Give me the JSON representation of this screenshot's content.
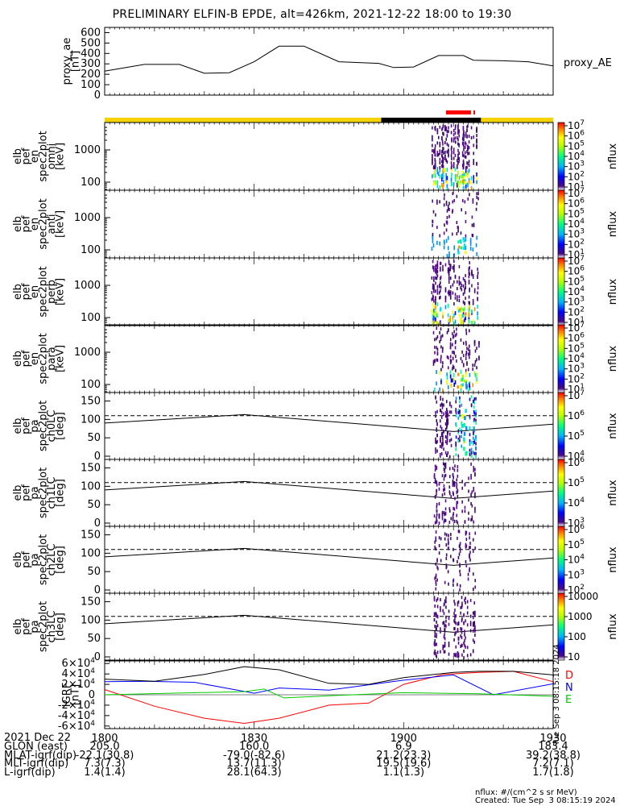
{
  "title": "PRELIMINARY ELFIN-B EPDE, alt=426km, 2021-12-22 18:00 to 19:30",
  "ae_panel": {
    "ylabel_lines": [
      "proxy_ae",
      "[nT]"
    ],
    "legend": "proxy_AE",
    "ticks": [
      "600",
      "500",
      "400",
      "300",
      "200",
      "100",
      "0"
    ]
  },
  "spec_panels": [
    {
      "name": "omni",
      "ylabel_lines": [
        "elb",
        "pef",
        "en",
        "spec2plot",
        "omni",
        "[keV]"
      ],
      "ticks": [
        "1000",
        "100"
      ],
      "cbar_ticks": [
        "10^7",
        "10^6",
        "10^5",
        "10^4",
        "10^3",
        "10^2",
        "10^1"
      ]
    },
    {
      "name": "anti",
      "ylabel_lines": [
        "elb",
        "pef",
        "en",
        "spec2plot",
        "anti",
        "[keV]"
      ],
      "ticks": [
        "1000",
        "100"
      ],
      "cbar_ticks": [
        "10^7",
        "10^6",
        "10^5",
        "10^4",
        "10^3",
        "10^2",
        "10^1"
      ]
    },
    {
      "name": "perp",
      "ylabel_lines": [
        "elb",
        "pef",
        "en",
        "spec2plot",
        "perp",
        "[keV]"
      ],
      "ticks": [
        "1000",
        "100"
      ],
      "cbar_ticks": [
        "10^7",
        "10^6",
        "10^5",
        "10^4",
        "10^3",
        "10^2",
        "10^1"
      ]
    },
    {
      "name": "para",
      "ylabel_lines": [
        "elb",
        "pef",
        "en",
        "spec2plot",
        "para",
        "[keV]"
      ],
      "ticks": [
        "1000",
        "100"
      ],
      "cbar_ticks": [
        "10^7",
        "10^6",
        "10^5",
        "10^4",
        "10^3",
        "10^2",
        "10^1"
      ]
    }
  ],
  "pa_panels": [
    {
      "name": "ch0LC",
      "ylabel_lines": [
        "elb",
        "pef",
        "pa",
        "spec2plot",
        "ch0LC",
        "[deg]"
      ],
      "ticks": [
        "150",
        "100",
        "50",
        "0"
      ],
      "cbar_ticks": [
        "10^7",
        "10^6",
        "10^5",
        "10^4"
      ]
    },
    {
      "name": "ch1LC",
      "ylabel_lines": [
        "elb",
        "pef",
        "pa",
        "spec2plot",
        "ch1LC",
        "[deg]"
      ],
      "ticks": [
        "150",
        "100",
        "50",
        "0"
      ],
      "cbar_ticks": [
        "10^6",
        "10^5",
        "10^4",
        "10^3"
      ]
    },
    {
      "name": "ch2LC",
      "ylabel_lines": [
        "elb",
        "pef",
        "pa",
        "spec2plot",
        "ch2LC",
        "[deg]"
      ],
      "ticks": [
        "150",
        "100",
        "50",
        "0"
      ],
      "cbar_ticks": [
        "10^6",
        "10^5",
        "10^4",
        "10^3",
        "10^2"
      ]
    },
    {
      "name": "ch3LC",
      "ylabel_lines": [
        "elb",
        "pef",
        "pa",
        "spec2plot",
        "ch3LC",
        "[deg]"
      ],
      "ticks": [
        "150",
        "100",
        "50",
        "0"
      ],
      "cbar_ticks": [
        "10000",
        "1000",
        "100",
        "10"
      ]
    }
  ],
  "cbar_label": "nflux",
  "igrf_panel": {
    "ylabel_lines": [
      "IGRF",
      "[nT]"
    ],
    "ticks": [
      "6×10^4",
      "4×10^4",
      "2×10^4",
      "0",
      "-2×10^4",
      "-4×10^4",
      "-6×10^4"
    ],
    "legend": [
      {
        "label": "D",
        "color": "#ff0000"
      },
      {
        "label": "N",
        "color": "#0000ff"
      },
      {
        "label": "E",
        "color": "#00cc00"
      }
    ],
    "stamp": "Tue Sep  3 08:15:18 2024"
  },
  "x_ticks": [
    "1800",
    "1830",
    "1900",
    "1930"
  ],
  "footer": {
    "date": "2021 Dec 22",
    "rows": [
      {
        "label": "GLON (east)",
        "values": [
          "205.0",
          "160.0",
          "6.9",
          "183.4"
        ]
      },
      {
        "label": "MLAT-igrf(dip)",
        "values": [
          "-22.1(30.8)",
          "-79.0(-82.6)",
          "21.2(23.3)",
          "39.2(38.8)"
        ]
      },
      {
        "label": "MLT-igrf(dip)",
        "values": [
          "7.3(7.3)",
          "13.7(11.3)",
          "19.5(19.6)",
          "7.2(7.1)"
        ]
      },
      {
        "label": "L-igrf(dip)",
        "values": [
          "1.4(1.4)",
          "28.1(64.3)",
          "1.1(1.3)",
          "1.7(1.8)"
        ]
      }
    ]
  },
  "credit_lines": [
    "nflux: #/(cm^2 s sr MeV)",
    "Created: Tue Sep  3 08:15:19 2024"
  ],
  "chart_data": {
    "type": "line",
    "title": "PRELIMINARY ELFIN-B EPDE, alt=426km, 2021-12-22 18:00 to 19:30",
    "x_range": [
      "18:00",
      "19:30"
    ],
    "x_tick_labels": [
      "1800",
      "1830",
      "1900",
      "1930"
    ],
    "ae_series": {
      "name": "proxy_AE",
      "ylim": [
        0,
        650
      ],
      "points": [
        [
          "18:00",
          230
        ],
        [
          "18:08",
          295
        ],
        [
          "18:15",
          295
        ],
        [
          "18:20",
          210
        ],
        [
          "18:25",
          215
        ],
        [
          "18:30",
          320
        ],
        [
          "18:35",
          470
        ],
        [
          "18:40",
          470
        ],
        [
          "18:47",
          320
        ],
        [
          "18:55",
          305
        ],
        [
          "18:58",
          265
        ],
        [
          "19:02",
          270
        ],
        [
          "19:07",
          380
        ],
        [
          "19:12",
          380
        ],
        [
          "19:14",
          335
        ],
        [
          "19:20",
          330
        ],
        [
          "19:25",
          320
        ],
        [
          "19:30",
          280
        ]
      ]
    },
    "igrf_series": [
      {
        "name": "D",
        "color": "#ff0000",
        "points": [
          [
            "18:00",
            1
          ],
          [
            "18:10",
            -2.2
          ],
          [
            "18:20",
            -4.5
          ],
          [
            "18:28",
            -5.5
          ],
          [
            "18:35",
            -4.5
          ],
          [
            "18:45",
            -2
          ],
          [
            "18:53",
            -1.6
          ],
          [
            "19:00",
            2
          ],
          [
            "19:08",
            3.9
          ],
          [
            "19:15",
            4.3
          ],
          [
            "19:22",
            4.5
          ],
          [
            "19:30",
            2.5
          ]
        ]
      },
      {
        "name": "N",
        "color": "#0000ff",
        "points": [
          [
            "18:00",
            2.5
          ],
          [
            "18:08",
            2.6
          ],
          [
            "18:18",
            2.4
          ],
          [
            "18:30",
            0.3
          ],
          [
            "18:35",
            1.3
          ],
          [
            "18:45",
            0.9
          ],
          [
            "19:00",
            2.8
          ],
          [
            "19:10",
            3.8
          ],
          [
            "19:18",
            0
          ],
          [
            "19:30",
            2.1
          ]
        ]
      },
      {
        "name": "E",
        "color": "#00cc00",
        "points": [
          [
            "18:00",
            0
          ],
          [
            "18:28",
            0.6
          ],
          [
            "18:32",
            1.1
          ],
          [
            "18:36",
            -0.6
          ],
          [
            "18:45",
            -0.2
          ],
          [
            "19:00",
            0.4
          ],
          [
            "19:15",
            0.2
          ],
          [
            "19:30",
            -0.3
          ]
        ]
      },
      {
        "name": "total",
        "color": "#000000",
        "points": [
          [
            "18:00",
            3
          ],
          [
            "18:10",
            2.6
          ],
          [
            "18:20",
            3.9
          ],
          [
            "18:28",
            5.4
          ],
          [
            "18:35",
            4.8
          ],
          [
            "18:45",
            2.2
          ],
          [
            "18:53",
            2
          ],
          [
            "19:00",
            3.3
          ],
          [
            "19:10",
            4.3
          ],
          [
            "19:15",
            4.5
          ],
          [
            "19:22",
            4.5
          ],
          [
            "19:30",
            3.8
          ]
        ]
      }
    ],
    "igrf_ylim": [
      -6.5,
      6.5
    ],
    "igrf_unit_scale": "×10^4 nT",
    "loss_cone_lines": {
      "solid": [
        [
          "18:00",
          90
        ],
        [
          "18:28",
          113
        ],
        [
          "19:10",
          67
        ],
        [
          "19:30",
          87
        ]
      ],
      "dashed": [
        [
          "18:00",
          110
        ],
        [
          "19:30",
          110
        ]
      ]
    },
    "pa_ylim": [
      0,
      180
    ],
    "energy_ticks_keV": [
      100,
      1000
    ]
  }
}
